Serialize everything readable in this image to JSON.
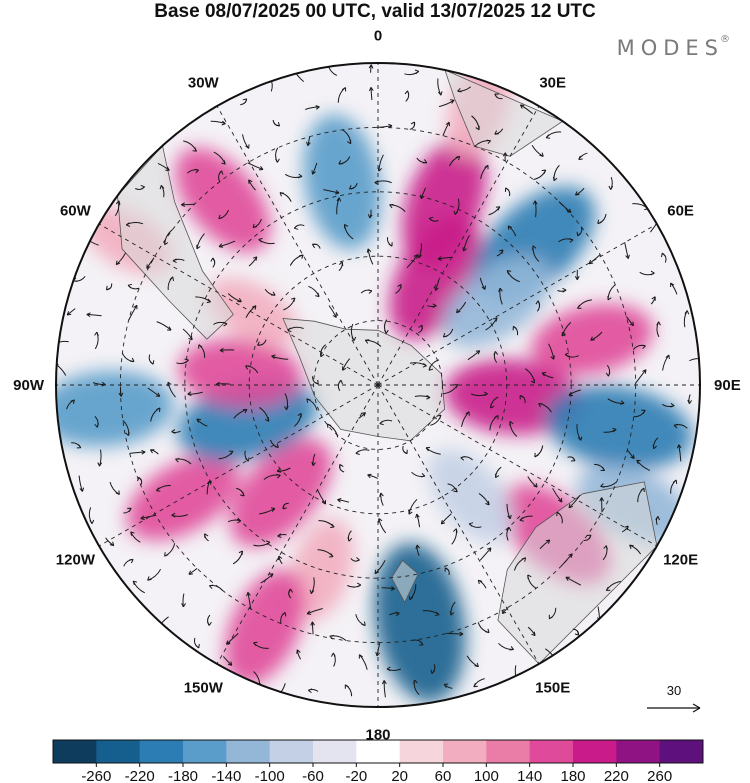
{
  "header": {
    "title": "Base 08/07/2025 00 UTC, valid 13/07/2025 12 UTC",
    "brand": "MODES",
    "brand_mark": "®"
  },
  "map": {
    "projection": "south-polar-stereographic",
    "longitude_labels": [
      "0",
      "30E",
      "60E",
      "90E",
      "120E",
      "150E",
      "180",
      "150W",
      "120W",
      "90W",
      "60W",
      "30W"
    ],
    "vector_reference": {
      "value": "30"
    },
    "anomaly_cells": [
      {
        "lon": 350,
        "r": 0.64,
        "value": -180
      },
      {
        "lon": 20,
        "r": 0.6,
        "value": 180
      },
      {
        "lon": 28,
        "r": 0.38,
        "value": 180
      },
      {
        "lon": 48,
        "r": 0.65,
        "value": -220
      },
      {
        "lon": 55,
        "r": 0.45,
        "value": -140
      },
      {
        "lon": 78,
        "r": 0.68,
        "value": 140
      },
      {
        "lon": 95,
        "r": 0.42,
        "value": 180
      },
      {
        "lon": 100,
        "r": 0.76,
        "value": -220
      },
      {
        "lon": 115,
        "r": 0.88,
        "value": -140
      },
      {
        "lon": 130,
        "r": 0.72,
        "value": 160
      },
      {
        "lon": 140,
        "r": 0.45,
        "value": -100
      },
      {
        "lon": 170,
        "r": 0.75,
        "value": -260
      },
      {
        "lon": 197,
        "r": 0.6,
        "value": 80
      },
      {
        "lon": 205,
        "r": 0.83,
        "value": 140
      },
      {
        "lon": 222,
        "r": 0.45,
        "value": 160
      },
      {
        "lon": 240,
        "r": 0.7,
        "value": 140
      },
      {
        "lon": 255,
        "r": 0.42,
        "value": -200
      },
      {
        "lon": 275,
        "r": 0.43,
        "value": 140
      },
      {
        "lon": 265,
        "r": 0.85,
        "value": -180
      },
      {
        "lon": 300,
        "r": 0.45,
        "value": 60
      },
      {
        "lon": 320,
        "r": 0.75,
        "value": 140
      },
      {
        "lon": 300,
        "r": 0.9,
        "value": 60
      },
      {
        "lon": 20,
        "r": 0.92,
        "value": 80
      }
    ]
  },
  "colorbar": {
    "tick_labels": [
      "-260",
      "-220",
      "-180",
      "-140",
      "-100",
      "-60",
      "-20",
      "20",
      "60",
      "100",
      "140",
      "180",
      "220",
      "260"
    ],
    "colors": [
      "#0d3c5c",
      "#155f8e",
      "#2b7db4",
      "#5a9cca",
      "#94b7d8",
      "#c4d0e5",
      "#e4e4f0",
      "#ffffff",
      "#f6d6dc",
      "#f2aec0",
      "#ea7ca8",
      "#e04a9a",
      "#c91c8a",
      "#8f1382",
      "#5e107c"
    ]
  }
}
